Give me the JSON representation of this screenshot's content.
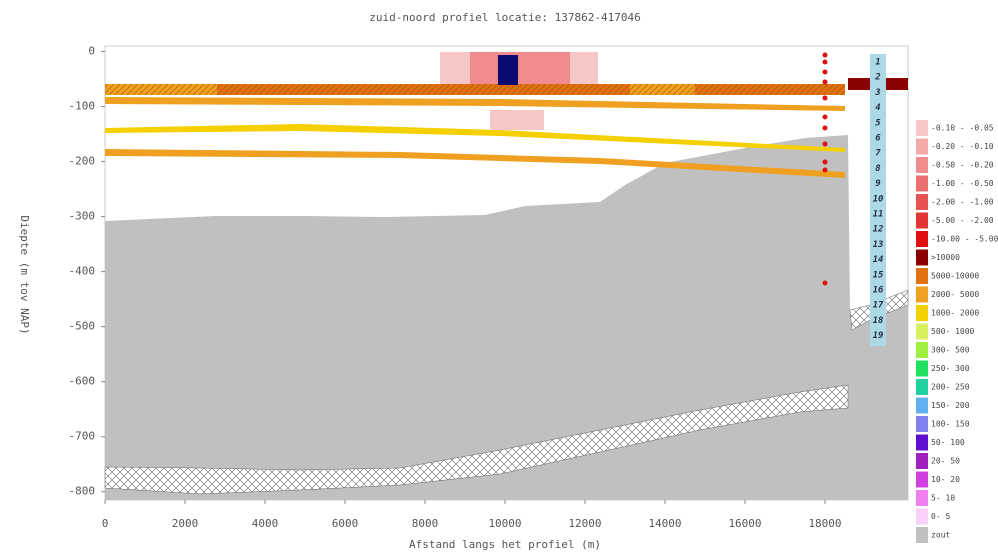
{
  "chart_data": {
    "type": "section",
    "title": "zuid-noord profiel locatie: 137862-417046",
    "x_label": "Afstand langs het profiel (m)",
    "y_label": "Diepte (m tov NAP)",
    "xlim": [
      0,
      20000
    ],
    "ylim": [
      -815,
      10
    ],
    "xticks": [
      0,
      2000,
      4000,
      6000,
      8000,
      10000,
      12000,
      14000,
      16000,
      18000
    ],
    "yticks": [
      0,
      -100,
      -200,
      -300,
      -400,
      -500,
      -600,
      -700,
      -800
    ],
    "layer_labels": [
      "1",
      "2",
      "3",
      "4",
      "5",
      "6",
      "7",
      "8",
      "9",
      "10",
      "11",
      "12",
      "13",
      "14",
      "15",
      "16",
      "17",
      "18",
      "19"
    ],
    "legend": [
      {
        "label": "-0.10 - -0.05",
        "color": "#f7c6c6"
      },
      {
        "label": "-0.20 - -0.10",
        "color": "#f4a9a9"
      },
      {
        "label": "-0.50 - -0.20",
        "color": "#f08c8c"
      },
      {
        "label": "-1.00 - -0.50",
        "color": "#ec6f6f"
      },
      {
        "label": "-2.00 - -1.00",
        "color": "#e85252"
      },
      {
        "label": "-5.00 - -2.00",
        "color": "#e43535"
      },
      {
        "label": "-10.00 - -5.00",
        "color": "#e01010"
      },
      {
        "label": ">10000",
        "color": "#8b0000"
      },
      {
        "label": "5000-10000",
        "color": "#e07010"
      },
      {
        "label": "2000- 5000",
        "color": "#f0a020"
      },
      {
        "label": "1000- 2000",
        "color": "#f5d000"
      },
      {
        "label": "500- 1000",
        "color": "#d8f060"
      },
      {
        "label": "300- 500",
        "color": "#a0f040"
      },
      {
        "label": "250- 300",
        "color": "#20e060"
      },
      {
        "label": "200- 250",
        "color": "#20d0a0"
      },
      {
        "label": "150- 200",
        "color": "#60b0f0"
      },
      {
        "label": "100- 150",
        "color": "#8080f0"
      },
      {
        "label": "50- 100",
        "color": "#6010d0"
      },
      {
        "label": "20- 50",
        "color": "#a020c0"
      },
      {
        "label": "10- 20",
        "color": "#d040e0"
      },
      {
        "label": "5- 10",
        "color": "#f080f0"
      },
      {
        "label": "0- 5",
        "color": "#f8d0f8"
      },
      {
        "label": "zout",
        "color": "#c0c0c0"
      }
    ]
  }
}
